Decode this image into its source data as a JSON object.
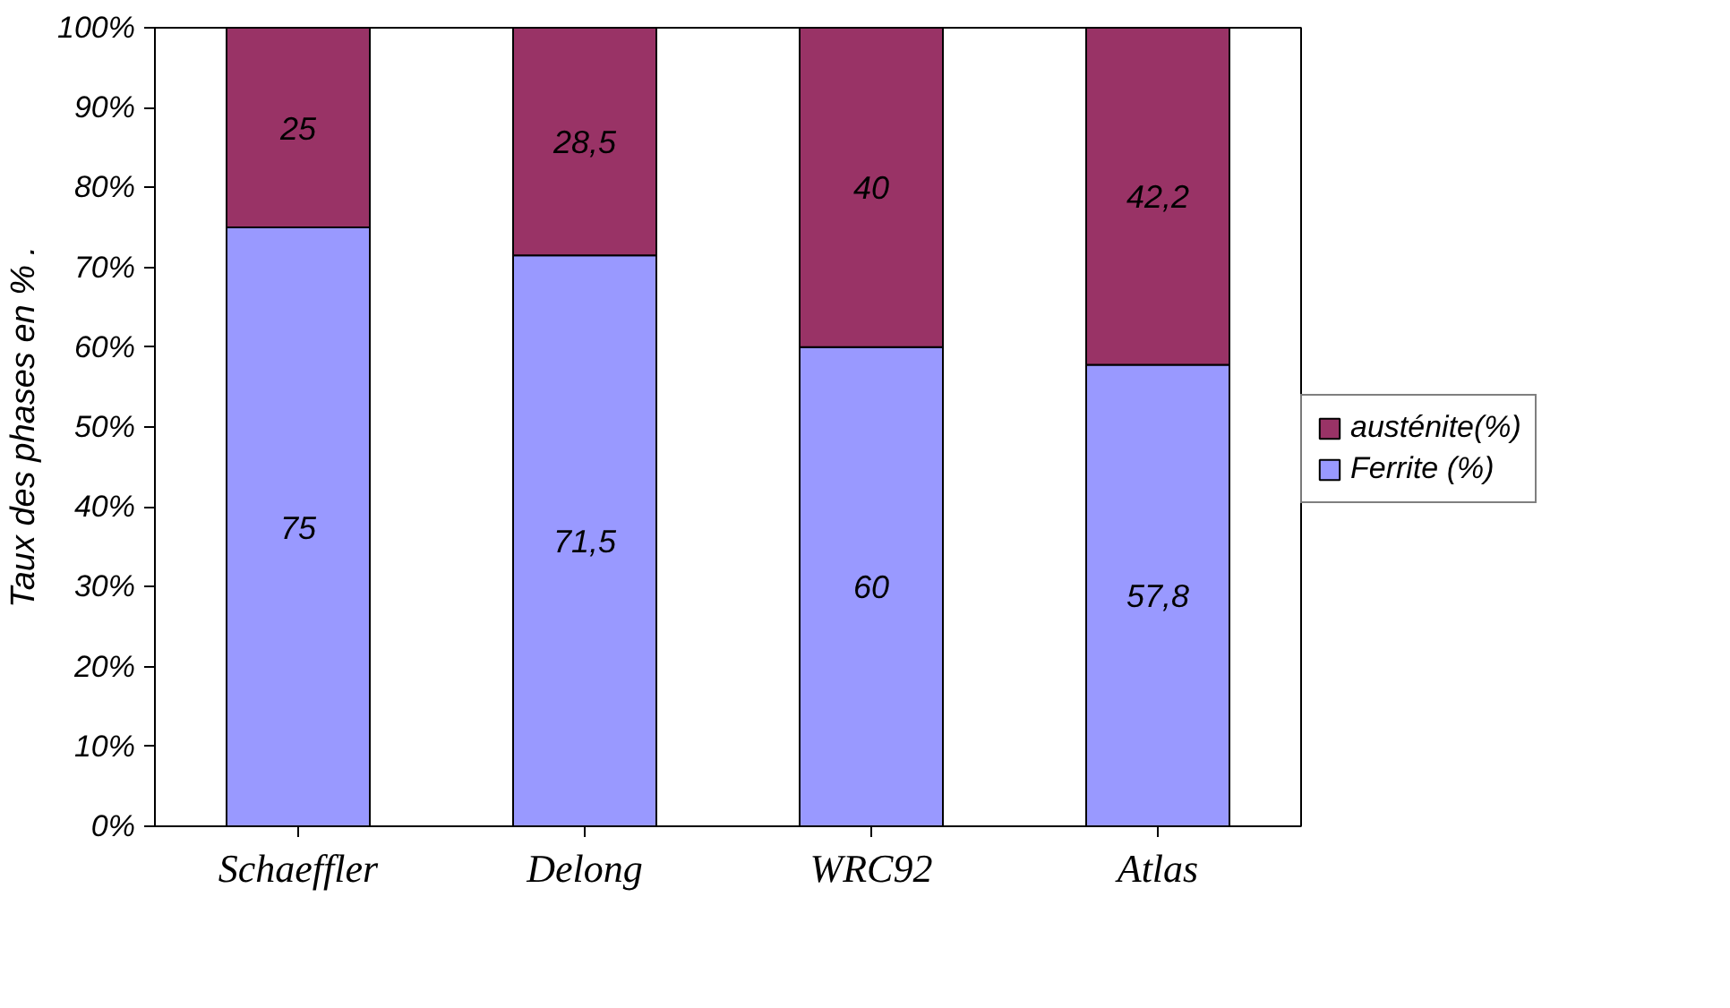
{
  "chart_data": {
    "type": "bar",
    "stacked": true,
    "ylabel": "Taux des phases en % .",
    "categories": [
      "Schaeffler",
      "Delong",
      "WRC92",
      "Atlas"
    ],
    "series": [
      {
        "name": "Ferrite (%)",
        "color": "#9999ff",
        "values": [
          75,
          71.5,
          60,
          57.8
        ],
        "value_labels": [
          "75",
          "71,5",
          "60",
          "57,8"
        ]
      },
      {
        "name": "austénite(%)",
        "color": "#993366",
        "values": [
          25,
          28.5,
          40,
          42.2
        ],
        "value_labels": [
          "25",
          "28,5",
          "40",
          "42,2"
        ]
      }
    ],
    "ylim": [
      0,
      100
    ],
    "yticks": [
      {
        "value": 0,
        "label": "0%"
      },
      {
        "value": 10,
        "label": "10%"
      },
      {
        "value": 20,
        "label": "20%"
      },
      {
        "value": 30,
        "label": "30%"
      },
      {
        "value": 40,
        "label": "40%"
      },
      {
        "value": 50,
        "label": "50%"
      },
      {
        "value": 60,
        "label": "60%"
      },
      {
        "value": 70,
        "label": "70%"
      },
      {
        "value": 80,
        "label": "80%"
      },
      {
        "value": 90,
        "label": "90%"
      },
      {
        "value": 100,
        "label": "100%"
      }
    ],
    "grid": false,
    "legend": "right"
  }
}
